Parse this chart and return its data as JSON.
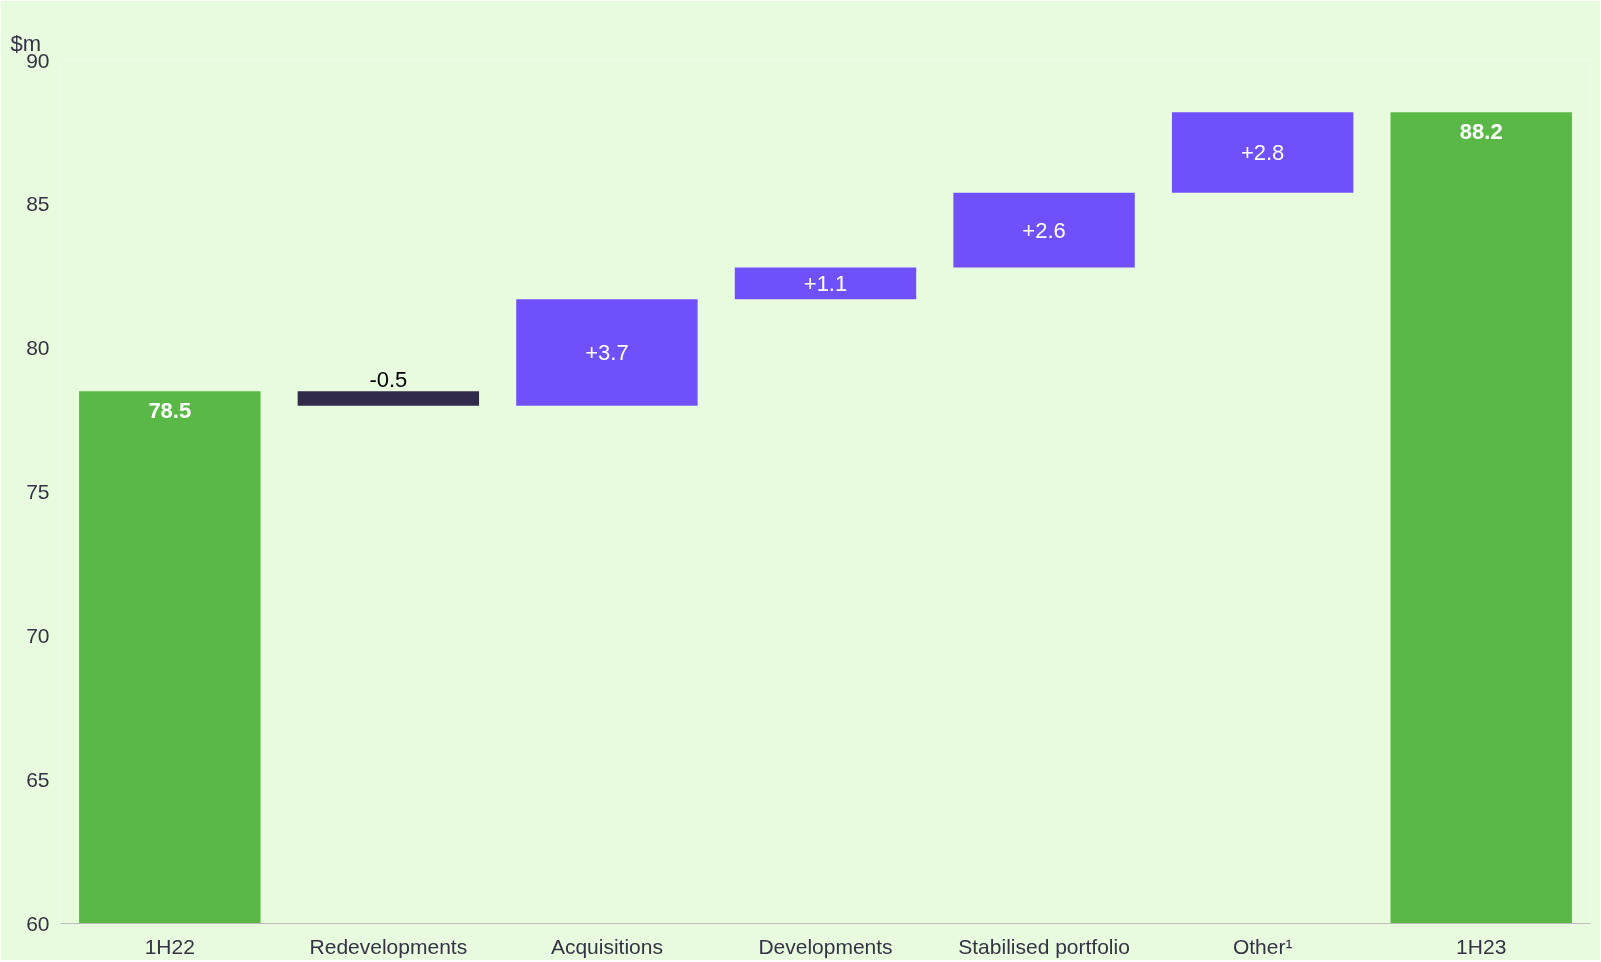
{
  "chart_data": {
    "type": "bar",
    "ylabel": "$m",
    "categories": [
      "1H22",
      "Redevelopments",
      "Acquisitions",
      "Developments",
      "Stabilised portfolio",
      "Other¹",
      "1H23"
    ],
    "values": [
      78.5,
      -0.5,
      3.7,
      1.1,
      2.6,
      2.8,
      88.2
    ],
    "base": [
      0,
      78.5,
      78.0,
      81.7,
      82.8,
      85.4,
      0
    ],
    "colors": [
      "#5ab946",
      "#322a4a",
      "#7050fa",
      "#7050fa",
      "#7050fa",
      "#7050fa",
      "#5ab946"
    ],
    "value_labels": [
      "78.5",
      "-0.5",
      "+3.7",
      "+1.1",
      "+2.6",
      "+2.8",
      "88.2"
    ],
    "ylim": [
      60,
      90
    ],
    "yticks": [
      60,
      65,
      70,
      75,
      80,
      85,
      90
    ],
    "grid": false
  }
}
